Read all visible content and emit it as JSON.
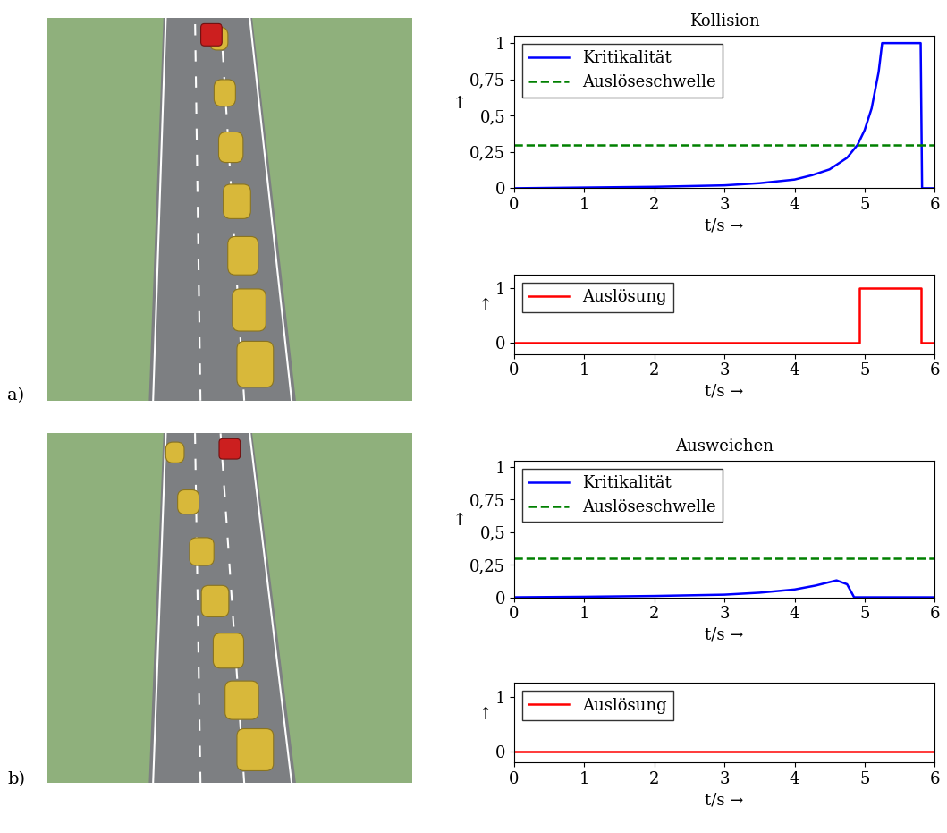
{
  "chart_data": [
    {
      "type": "line",
      "title": "Kollision",
      "x": [
        0,
        1,
        2,
        3,
        3.5,
        4,
        4.25,
        4.5,
        4.75,
        4.9,
        5.0,
        5.1,
        5.2,
        5.25,
        5.8,
        5.82,
        6
      ],
      "series": [
        {
          "name": "Kritikalität",
          "color": "#0000ff",
          "line_style": "solid",
          "values": [
            0,
            0.005,
            0.01,
            0.02,
            0.035,
            0.06,
            0.09,
            0.13,
            0.21,
            0.3,
            0.4,
            0.55,
            0.8,
            1,
            1,
            0,
            0
          ]
        },
        {
          "name": "Auslöseschwelle",
          "color": "#008000",
          "line_style": "dashed",
          "values": [
            0.3,
            0.3,
            0.3,
            0.3,
            0.3,
            0.3,
            0.3,
            0.3,
            0.3,
            0.3,
            0.3,
            0.3,
            0.3,
            0.3,
            0.3,
            0.3,
            0.3
          ]
        }
      ],
      "xlabel": "t/s →",
      "ylabel": "↑",
      "xlim": [
        0,
        6
      ],
      "xticks": [
        0,
        1,
        2,
        3,
        4,
        5,
        6
      ],
      "ylim": [
        0,
        1.05
      ],
      "yticks": [
        0,
        {
          "value": 0.25,
          "label": "0,25"
        },
        {
          "value": 0.5,
          "label": "0,5"
        },
        {
          "value": 0.75,
          "label": "0,75"
        },
        1
      ],
      "legend": "upper left"
    },
    {
      "type": "line",
      "x": [
        0,
        4.92,
        4.92,
        5.8,
        5.8,
        6
      ],
      "series": [
        {
          "name": "Auslösung",
          "color": "#ff0000",
          "line_style": "solid",
          "values": [
            0,
            0,
            1,
            1,
            0,
            0
          ]
        }
      ],
      "xlabel": "t/s →",
      "ylabel": "↑",
      "xlim": [
        0,
        6
      ],
      "xticks": [
        0,
        1,
        2,
        3,
        4,
        5,
        6
      ],
      "ylim": [
        -0.2,
        1.25
      ],
      "yticks": [
        0,
        1
      ],
      "legend": "upper left"
    },
    {
      "type": "line",
      "title": "Ausweichen",
      "x": [
        0,
        1,
        2,
        3,
        3.5,
        4,
        4.3,
        4.6,
        4.75,
        4.85,
        5,
        6
      ],
      "series": [
        {
          "name": "Kritikalität",
          "color": "#0000ff",
          "line_style": "solid",
          "values": [
            0,
            0.004,
            0.01,
            0.02,
            0.035,
            0.06,
            0.09,
            0.13,
            0.1,
            0,
            0,
            0
          ]
        },
        {
          "name": "Auslöseschwelle",
          "color": "#008000",
          "line_style": "dashed",
          "values": [
            0.3,
            0.3,
            0.3,
            0.3,
            0.3,
            0.3,
            0.3,
            0.3,
            0.3,
            0.3,
            0.3,
            0.3
          ]
        }
      ],
      "xlabel": "t/s →",
      "ylabel": "↑",
      "xlim": [
        0,
        6
      ],
      "xticks": [
        0,
        1,
        2,
        3,
        4,
        5,
        6
      ],
      "ylim": [
        0,
        1.05
      ],
      "yticks": [
        0,
        {
          "value": 0.25,
          "label": "0,25"
        },
        {
          "value": 0.5,
          "label": "0,5"
        },
        {
          "value": 0.75,
          "label": "0,75"
        },
        1
      ],
      "legend": "upper left"
    },
    {
      "type": "line",
      "x": [
        0,
        6
      ],
      "series": [
        {
          "name": "Auslösung",
          "color": "#ff0000",
          "line_style": "solid",
          "values": [
            0,
            0
          ]
        }
      ],
      "xlabel": "t/s →",
      "ylabel": "↑",
      "xlim": [
        0,
        6
      ],
      "xticks": [
        0,
        1,
        2,
        3,
        4,
        5,
        6
      ],
      "ylim": [
        -0.2,
        1.25
      ],
      "yticks": [
        0,
        1
      ],
      "legend": "upper left"
    }
  ],
  "panel_labels": [
    "a)",
    "b)"
  ]
}
